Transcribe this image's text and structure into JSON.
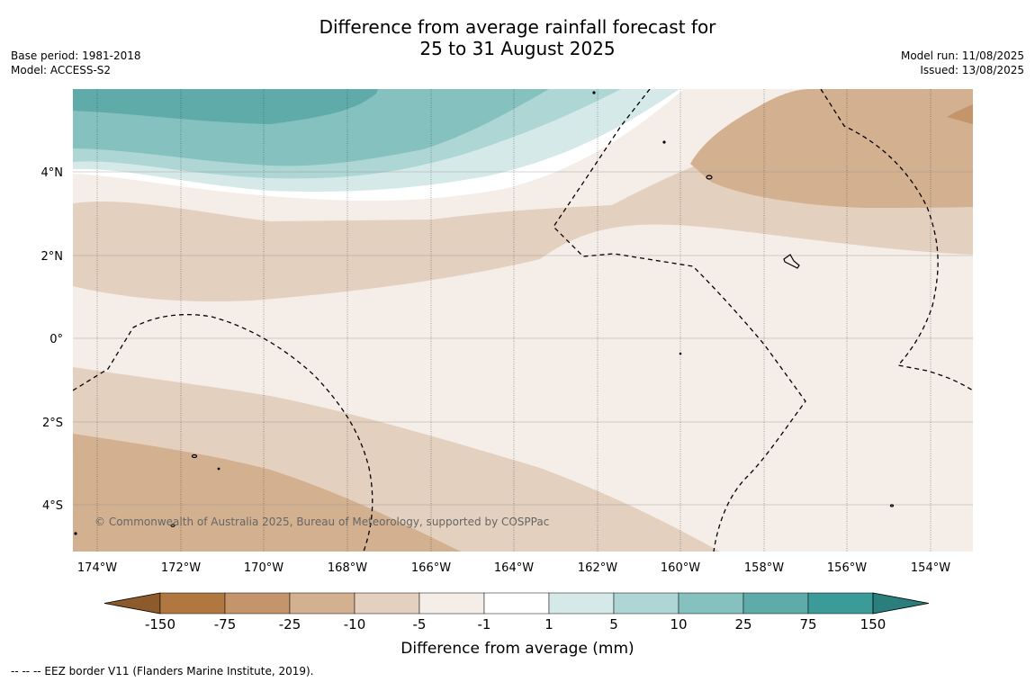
{
  "title_line1": "Difference from average rainfall forecast for",
  "title_line2": "25 to 31 August 2025",
  "base_period": "Base period: 1981-2018",
  "model": "Model: ACCESS-S2",
  "model_run": "Model run: 11/08/2025",
  "issued": "Issued: 13/08/2025",
  "copyright": "© Commonwealth of Australia 2025, Bureau of Meteorology, supported by COSPPac",
  "footer_note": "--  --  -- EEZ border V11 (Flanders Marine Institute, 2019).",
  "map": {
    "lat_labels": [
      "4°N",
      "2°N",
      "0°",
      "2°S",
      "4°S"
    ],
    "lon_labels": [
      "174°W",
      "172°W",
      "170°W",
      "168°W",
      "166°W",
      "164°W",
      "162°W",
      "160°W",
      "158°W",
      "156°W",
      "154°W"
    ]
  },
  "colorbar": {
    "label": "Difference from average (mm)",
    "ticks": [
      "-150",
      "-75",
      "-25",
      "-10",
      "-5",
      "-1",
      "1",
      "5",
      "10",
      "25",
      "75",
      "150"
    ],
    "colors": [
      "#8c5a2b",
      "#b07840",
      "#c4956a",
      "#d3b08f",
      "#e3d0bf",
      "#f5ede7",
      "#ffffff",
      "#d5eae8",
      "#aed6d5",
      "#84c1bf",
      "#5fabaa",
      "#3a9b98",
      "#2a7f7c"
    ]
  }
}
